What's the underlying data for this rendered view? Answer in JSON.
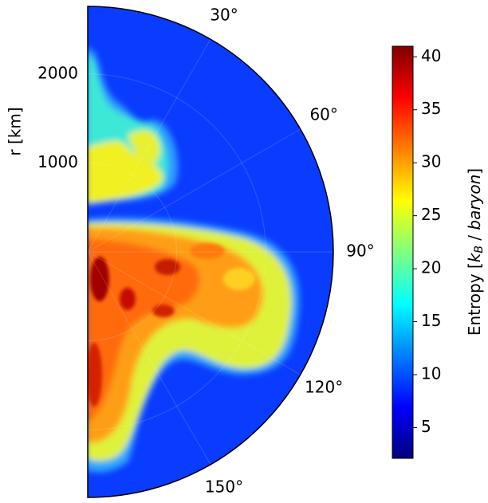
{
  "chart_data": {
    "type": "polar-heatmap",
    "rlabel": "r [km]",
    "rlim": [
      0,
      2760
    ],
    "rticks": [
      1000,
      2000
    ],
    "thetalim": [
      0,
      180
    ],
    "thetaticks": [
      {
        "value": 30,
        "label": "30°"
      },
      {
        "value": 60,
        "label": "60°"
      },
      {
        "value": 90,
        "label": "90°"
      },
      {
        "value": 120,
        "label": "120°"
      },
      {
        "value": 150,
        "label": "150°"
      }
    ],
    "grid": true,
    "colorbar": {
      "cmap": "jet",
      "clim": [
        2.1,
        41
      ],
      "ticks": [
        5,
        10,
        15,
        20,
        25,
        30,
        35,
        40
      ],
      "label_parts": [
        "Entropy [",
        "k",
        "B",
        " / ",
        "baryon",
        "]"
      ]
    }
  }
}
